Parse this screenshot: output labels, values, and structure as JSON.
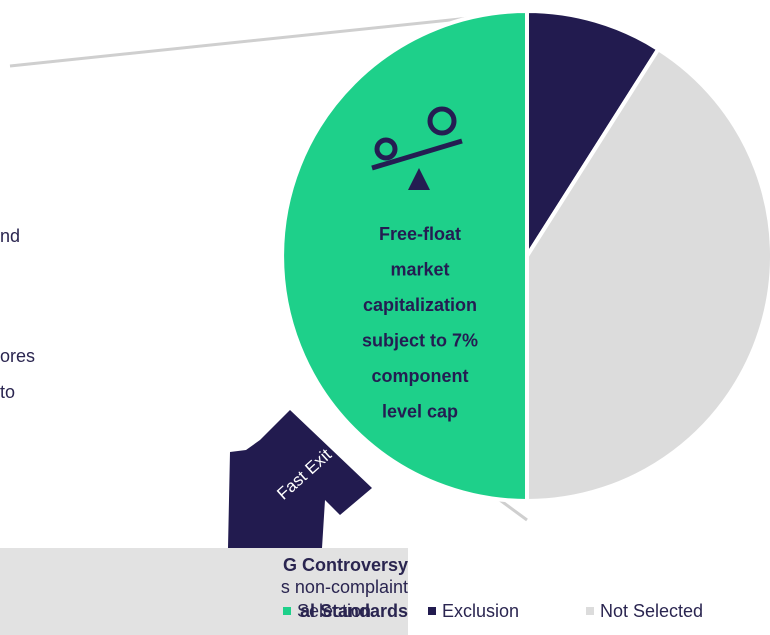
{
  "chart_data": {
    "type": "pie",
    "categories": [
      "Selection",
      "Exclusion",
      "Not Selected"
    ],
    "values": [
      50,
      9,
      41
    ],
    "colors": [
      "#1ed08a",
      "#221b4f",
      "#dcdcdc"
    ],
    "center_text": [
      "Free-float",
      "market",
      "capitalization",
      "subject to 7%",
      "component",
      "level cap"
    ],
    "arrow_label": "Fast Exit",
    "side_text": [
      "nd",
      "ores",
      "to"
    ],
    "box_text": [
      "G Controversy",
      "s non-complaint",
      "al Standards"
    ]
  }
}
